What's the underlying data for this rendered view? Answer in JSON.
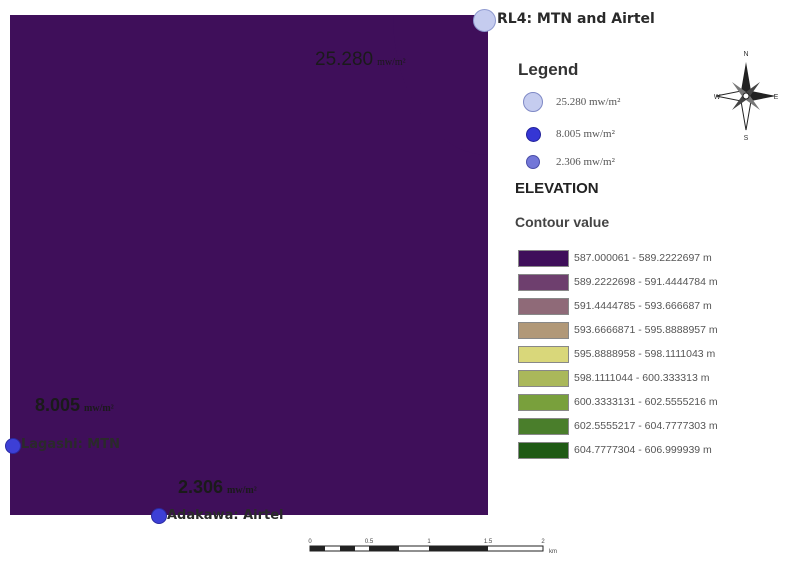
{
  "map": {
    "zone_colors": [
      "#3f0f5a",
      "#6e3f6e",
      "#8f6a78",
      "#b19878",
      "#d9d77a",
      "#aab85a",
      "#79a03c",
      "#4a7e2b",
      "#1f5a14"
    ],
    "intensity_labels": [
      {
        "text": "25.280",
        "unit": "mw/m²"
      },
      {
        "text": "8.005",
        "unit": "mw/m²"
      },
      {
        "text": "2.306",
        "unit": "mw/m²"
      }
    ],
    "sites": [
      {
        "label": "RL4: MTN and Airtel"
      },
      {
        "label": "Lagashi: MTN"
      },
      {
        "label": "Adakawa: Airtel"
      }
    ]
  },
  "legend": {
    "title": "Legend",
    "symbols": [
      {
        "label": "25.280 mw/m²"
      },
      {
        "label": "8.005 mw/m²"
      },
      {
        "label": "2.306 mw/m²"
      }
    ],
    "elevation_title": "ELEVATION",
    "contour_title": "Contour value",
    "classes": [
      {
        "range": "587.000061 - 589.2222697 m",
        "color": "#3f0f5a"
      },
      {
        "range": "589.2222698 - 591.4444784 m",
        "color": "#6e3f6e"
      },
      {
        "range": "591.4444785 - 593.666687 m",
        "color": "#8f6a78"
      },
      {
        "range": "593.6666871 - 595.8888957 m",
        "color": "#b19878"
      },
      {
        "range": "595.8888958 - 598.1111043 m",
        "color": "#d9d77a"
      },
      {
        "range": "598.1111044 - 600.333313 m",
        "color": "#aab85a"
      },
      {
        "range": "600.3333131 - 602.5555216 m",
        "color": "#79a03c"
      },
      {
        "range": "602.5555217 - 604.7777303 m",
        "color": "#4a7e2b"
      },
      {
        "range": "604.7777304 - 606.999939 m",
        "color": "#1f5a14"
      }
    ]
  },
  "north_arrow": {
    "letters": [
      "N",
      "E",
      "S",
      "W"
    ]
  },
  "scale_bar": {
    "ticks": [
      "0",
      "0.5",
      "1",
      "1.5",
      "2"
    ],
    "unit": "km"
  }
}
